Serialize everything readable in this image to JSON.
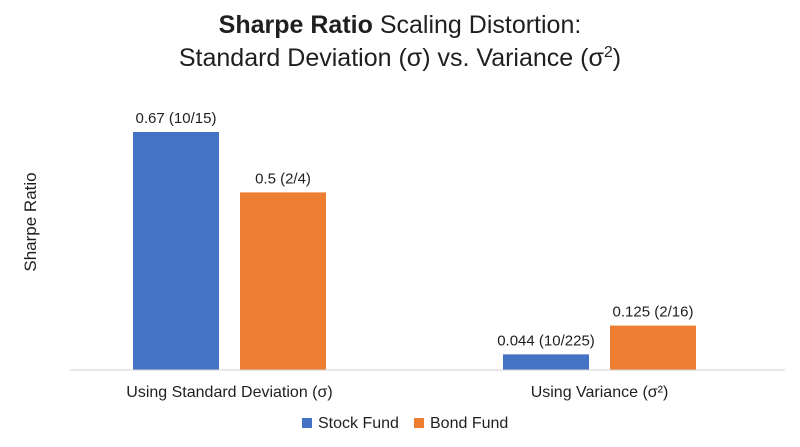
{
  "chart_data": {
    "type": "bar",
    "title": {
      "line1_bold": "Sharpe Ratio",
      "line1_rest": " Scaling Distortion:",
      "line2_main": "Standard Deviation (σ) vs. Variance (σ",
      "line2_sup": "2",
      "line2_end": ")"
    },
    "ylabel": "Sharpe Ratio",
    "xlabel": "",
    "ylim": [
      0,
      0.75
    ],
    "grid": false,
    "legend_position": "bottom",
    "categories": [
      "Using Standard Deviation (σ)",
      "Using Variance (σ²)"
    ],
    "series": [
      {
        "name": "Stock Fund",
        "color": "#4472C4",
        "values": [
          0.67,
          0.044
        ],
        "labels": [
          "0.67 (10/15)",
          "0.044 (10/225)"
        ]
      },
      {
        "name": "Bond Fund",
        "color": "#ED7D31",
        "values": [
          0.5,
          0.125
        ],
        "labels": [
          "0.5 (2/4)",
          "0.125 (2/16)"
        ]
      }
    ]
  }
}
